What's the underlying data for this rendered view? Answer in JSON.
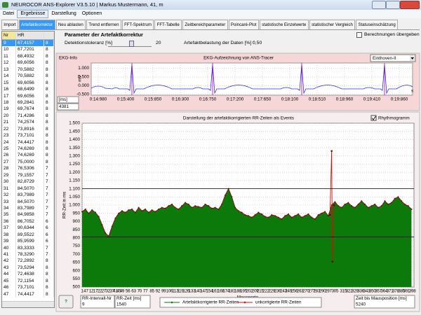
{
  "window": {
    "title": "NEUROCOR ANS-Explorer V3.5.10 | Markus Mustermann, 41, m"
  },
  "menu": [
    "Datei",
    "Ergebnisse",
    "Darstellung",
    "Optionen"
  ],
  "tabs": [
    "Import",
    "Artefaktkorrektur",
    "Neu ablasten",
    "Trend entfernen",
    "FFT-Spektrum",
    "FFT-Tabelle",
    "Zeitbereichparameter",
    "Poincaré-Plot",
    "statistische Einzelwerte",
    "statistischer Vergleich",
    "Statuseinschätzung"
  ],
  "table": {
    "header": [
      "Nr",
      "HR"
    ],
    "rows": [
      [
        "9",
        "67,4157",
        "8"
      ],
      [
        "10",
        "67,7201",
        "8"
      ],
      [
        "11",
        "68,4932",
        "8"
      ],
      [
        "12",
        "69,6056",
        "8"
      ],
      [
        "13",
        "70,5882",
        "8"
      ],
      [
        "14",
        "70,5882",
        "8"
      ],
      [
        "15",
        "69,6056",
        "8"
      ],
      [
        "16",
        "68,6499",
        "8"
      ],
      [
        "17",
        "69,6056",
        "8"
      ],
      [
        "18",
        "69,2841",
        "8"
      ],
      [
        "19",
        "69,7674",
        "8"
      ],
      [
        "20",
        "71,4286",
        "8"
      ],
      [
        "21",
        "74,2574",
        "8"
      ],
      [
        "22",
        "73,8916",
        "8"
      ],
      [
        "23",
        "73,7101",
        "8"
      ],
      [
        "24",
        "74,4417",
        "8"
      ],
      [
        "25",
        "74,6269",
        "8"
      ],
      [
        "26",
        "74,6269",
        "8"
      ],
      [
        "27",
        "75,0000",
        "8"
      ],
      [
        "28",
        "76,5306",
        "7"
      ],
      [
        "29",
        "79,1557",
        "7"
      ],
      [
        "30",
        "82,8729",
        "7"
      ],
      [
        "31",
        "84,5070",
        "7"
      ],
      [
        "32",
        "83,7989",
        "7"
      ],
      [
        "33",
        "84,5070",
        "7"
      ],
      [
        "34",
        "83,7989",
        "7"
      ],
      [
        "35",
        "84,9858",
        "7"
      ],
      [
        "36",
        "86,7052",
        "6"
      ],
      [
        "37",
        "90,6344",
        "6"
      ],
      [
        "38",
        "89,5522",
        "6"
      ],
      [
        "39",
        "85,9599",
        "6"
      ],
      [
        "40",
        "83,3333",
        "7"
      ],
      [
        "41",
        "78,3290",
        "7"
      ],
      [
        "42",
        "72,2892",
        "8"
      ],
      [
        "43",
        "73,5294",
        "8"
      ],
      [
        "44",
        "72,4638",
        "8"
      ],
      [
        "45",
        "72,1154",
        "8"
      ],
      [
        "46",
        "73,7101",
        "8"
      ],
      [
        "47",
        "74,4417",
        "8"
      ]
    ]
  },
  "parameters": {
    "title": "Parameter der Artefaktkorrektur",
    "tolerance_label": "Detektionstoleranz [%]",
    "tolerance_value": 20,
    "load_label": "Artefaktbelastung der Daten [%] :",
    "load_value": "0,50",
    "checkbox": "Berechnungen übergeben"
  },
  "ekg": {
    "panel_label": "EKG-Info",
    "title": "EKG-Aufzeichnung von ANS-Tracer",
    "lead": "Einthoven-II",
    "ylabel": "mV",
    "ylim": [
      -0.55,
      1.3
    ],
    "yticks": [
      {
        "value": 1,
        "label": "1.000"
      },
      {
        "value": 0.5,
        "label": "0.500"
      },
      {
        "value": 0,
        "label": "0.000"
      },
      {
        "value": -0.5,
        "label": "-0.500"
      }
    ],
    "xlabels": [
      "0:14:980",
      "0:15:400",
      "0:15:850",
      "0:16:300",
      "0:16:750",
      "0:17:200",
      "0:17:650",
      "0:18:100",
      "0:18:510",
      "0:18:960",
      "0:19:410",
      "0:19:860"
    ],
    "xunit": "s",
    "field_label": "[ms]",
    "field_value": 4381
  },
  "chart_data": {
    "type": "area",
    "title": "Darstellung der artefaktkorrigierten RR-Zeiten als Events",
    "checkbox": "Rhythmogramm",
    "xlabel": "Messwerte",
    "ylabel": "RR-Zeit in ms",
    "grid": true,
    "xlim": [
      1,
      400
    ],
    "ylim": [
      500,
      1500
    ],
    "xticks": [
      1,
      4,
      7,
      12,
      17,
      22,
      27,
      32,
      37,
      41,
      45,
      49,
      56,
      63,
      70,
      77,
      85,
      92,
      99,
      106,
      113,
      119,
      126,
      133,
      140,
      147,
      154,
      161,
      168,
      174,
      181,
      188,
      195,
      202,
      209,
      215,
      222,
      229,
      236,
      243,
      249,
      256,
      263,
      270,
      277,
      283,
      290,
      297,
      305,
      315,
      322,
      329,
      336,
      343,
      350,
      357,
      364,
      371,
      378,
      385,
      391,
      398
    ],
    "yticks": [
      {
        "value": 1500,
        "label": "1.500"
      },
      {
        "value": 1450,
        "label": "1.450"
      },
      {
        "value": 1400,
        "label": "1.400"
      },
      {
        "value": 1350,
        "label": "1.350"
      },
      {
        "value": 1300,
        "label": "1.300"
      },
      {
        "value": 1250,
        "label": "1.250"
      },
      {
        "value": 1200,
        "label": "1.200"
      },
      {
        "value": 1150,
        "label": "1.150"
      },
      {
        "value": 1100,
        "label": "1.100"
      },
      {
        "value": 1050,
        "label": "1.050"
      },
      {
        "value": 1000,
        "label": "1.000"
      },
      950,
      900,
      850,
      800,
      750,
      700,
      650,
      600,
      550,
      500
    ],
    "reference_lines": [
      1100,
      805
    ],
    "series": [
      {
        "name": "Artefaktkorrigierte RR-Zeiten",
        "color": "#0b7a0b",
        "x": [
          1,
          5,
          9,
          13,
          17,
          21,
          25,
          29,
          33,
          37,
          41,
          45,
          49,
          53,
          57,
          61,
          65,
          69,
          73,
          77,
          81,
          85,
          89,
          93,
          97,
          101,
          105,
          109,
          113,
          117,
          121,
          125,
          129,
          133,
          137,
          141,
          145,
          149,
          153,
          157,
          161,
          165,
          169,
          173,
          177,
          181,
          185,
          189,
          193,
          197,
          201,
          205,
          209,
          213,
          217,
          221,
          225,
          229,
          233,
          237,
          241,
          245,
          249,
          253,
          257,
          261,
          265,
          269,
          273,
          277,
          281,
          285,
          289,
          293,
          297,
          301,
          305,
          309,
          313,
          317,
          321,
          325,
          329,
          333,
          337,
          341,
          345,
          349,
          353,
          357,
          361,
          365,
          369,
          373,
          377,
          381,
          385,
          389,
          393,
          397
        ],
        "values": [
          960,
          975,
          950,
          970,
          955,
          930,
          880,
          830,
          810,
          870,
          920,
          950,
          965,
          955,
          970,
          975,
          955,
          985,
          965,
          975,
          955,
          970,
          960,
          975,
          985,
          980,
          995,
          1005,
          985,
          975,
          995,
          1015,
          1005,
          985,
          995,
          990,
          985,
          1005,
          995,
          980,
          985,
          975,
          1005,
          1060,
          1100,
          1050,
          985,
          965,
          955,
          940,
          935,
          925,
          940,
          955,
          945,
          930,
          925,
          940,
          935,
          925,
          915,
          935,
          945,
          925,
          935,
          945,
          925,
          935,
          945,
          925,
          915,
          940,
          950,
          960,
          935,
          1000,
          1020,
          995,
          985,
          1005,
          1015,
          995,
          985,
          1005,
          1025,
          1005,
          985,
          995,
          1005,
          985,
          995,
          1025,
          1005,
          1015,
          1040,
          1050,
          1025,
          1005,
          995,
          975
        ]
      },
      {
        "name": "unkorrigierte RR-Zeiten",
        "color": "#d01010",
        "x": [
          299,
          301,
          302,
          304
        ],
        "values": [
          940,
          1330,
          655,
          1000
        ]
      }
    ]
  },
  "status": {
    "help": "?",
    "interval_label": "RR-Intervall-Nr",
    "interval_value": 9,
    "rr_label": "RR-Zeit [ms]",
    "rr_value": 1540,
    "mouse_label": "Zeit bis Mausposition [ms]",
    "mouse_value": 5240
  }
}
